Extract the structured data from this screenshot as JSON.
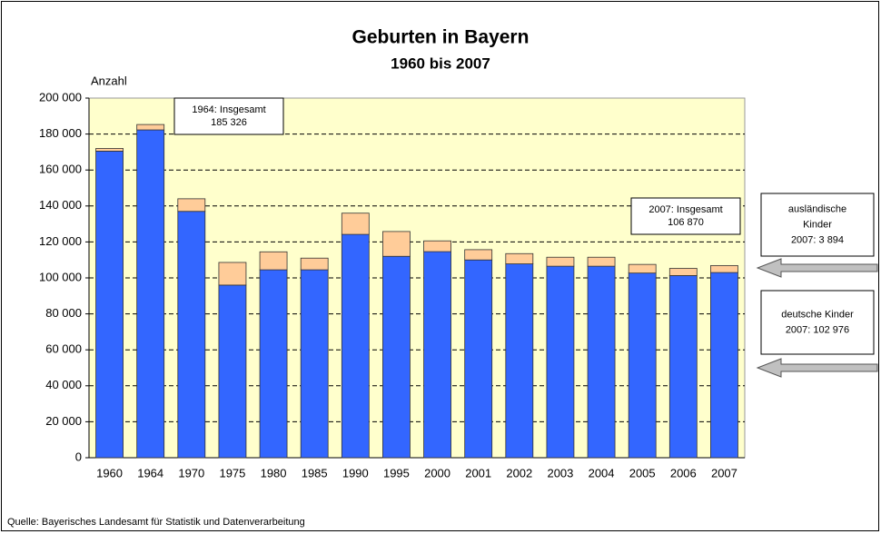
{
  "chart_data": {
    "type": "stacked_bar",
    "title": "Geburten in Bayern",
    "subtitle": "1960 bis 2007",
    "y_label": "Anzahl",
    "source": "Quelle: Bayerisches Landesamt für Statistik und Datenverarbeitung",
    "categories": [
      "1960",
      "1964",
      "1970",
      "1975",
      "1980",
      "1985",
      "1990",
      "1995",
      "2000",
      "2001",
      "2002",
      "2003",
      "2004",
      "2005",
      "2006",
      "2007"
    ],
    "series": [
      {
        "color": "#3366ff",
        "values": [
          170500,
          182300,
          137000,
          96000,
          104500,
          104500,
          124200,
          112000,
          114600,
          110000,
          107800,
          106500,
          106500,
          102700,
          101300,
          102976
        ]
      },
      {
        "color": "#ffcc99",
        "values": [
          1500,
          3000,
          7000,
          12600,
          10000,
          6500,
          11800,
          13800,
          6000,
          5700,
          5700,
          5000,
          5000,
          4800,
          4000,
          3894
        ]
      }
    ],
    "ylim": [
      0,
      200000
    ],
    "yticks": [
      0,
      {
        "value": 20000,
        "label": "20 000"
      },
      {
        "value": 40000,
        "label": "40 000"
      },
      {
        "value": 60000,
        "label": "60 000"
      },
      {
        "value": 80000,
        "label": "80 000"
      },
      {
        "value": 100000,
        "label": "100 000"
      },
      {
        "value": 120000,
        "label": "120 000"
      },
      {
        "value": 140000,
        "label": "140 000"
      },
      {
        "value": 160000,
        "label": "160 000"
      },
      {
        "value": 180000,
        "label": "180 000"
      },
      {
        "value": 200000,
        "label": "200 000"
      }
    ],
    "grid": true,
    "annotations": [
      {
        "lines": [
          "1964: Insgesamt",
          "185 326"
        ]
      },
      {
        "lines": [
          "2007: Insgesamt",
          "106 870"
        ]
      },
      {
        "lines": [
          "ausländische",
          "Kinder",
          "2007: 3 894"
        ]
      },
      {
        "lines": [
          "deutsche Kinder",
          "2007: 102 976"
        ]
      }
    ]
  }
}
